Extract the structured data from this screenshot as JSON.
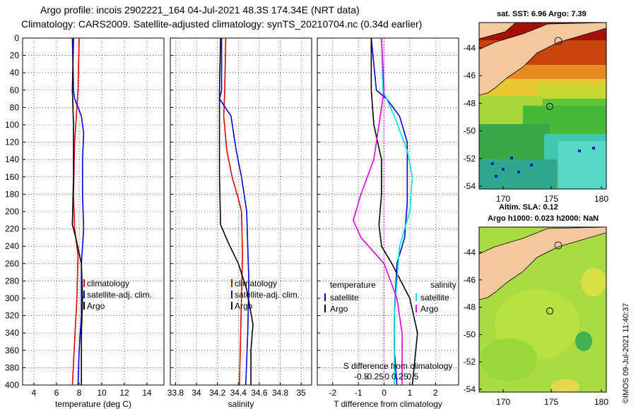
{
  "header": {
    "line1": "Argo profile: incois 2902221_164 04-Jul-2021 48.3S 174.34E (NRT data)",
    "line2": "Climatology: CARS2009. Satellite-adjusted climatology: synTS_20210704.nc (0.34d earlier)"
  },
  "colors": {
    "climatology": "#e00000",
    "satellite": "#0000dd",
    "argo": "#000000",
    "sal_satellite": "#00e0e0",
    "sal_argo": "#e000e0",
    "grid": "#000000"
  },
  "depth_axis": {
    "range": [
      0,
      400
    ],
    "ticks": [
      "0",
      "20",
      "40",
      "60",
      "80",
      "100",
      "120",
      "140",
      "160",
      "180",
      "200",
      "220",
      "240",
      "260",
      "280",
      "300",
      "320",
      "340",
      "360",
      "380",
      "400"
    ]
  },
  "chart_data": [
    {
      "type": "line",
      "id": "temperature",
      "xlabel": "temperature (deg C)",
      "xlim": [
        3,
        15.5
      ],
      "xticks": [
        4,
        6,
        8,
        10,
        12,
        14
      ],
      "xtick_labels": [
        "4",
        "6",
        "8",
        "10",
        "12",
        "14"
      ],
      "ylim": [
        0,
        400
      ],
      "legend": [
        "climatology",
        "satellite-adj. clim.",
        "Argo"
      ],
      "series": [
        {
          "name": "climatology",
          "color": "climatology",
          "points": [
            [
              8.0,
              0
            ],
            [
              7.9,
              60
            ],
            [
              7.6,
              120
            ],
            [
              7.5,
              180
            ],
            [
              7.6,
              220
            ],
            [
              7.9,
              250
            ],
            [
              7.8,
              300
            ],
            [
              7.6,
              350
            ],
            [
              7.4,
              400
            ]
          ]
        },
        {
          "name": "satellite-adj. clim.",
          "color": "satellite",
          "points": [
            [
              7.4,
              0
            ],
            [
              7.5,
              60
            ],
            [
              7.6,
              70
            ],
            [
              8.2,
              90
            ],
            [
              8.4,
              110
            ],
            [
              8.3,
              140
            ],
            [
              8.3,
              180
            ],
            [
              8.4,
              220
            ],
            [
              8.2,
              260
            ],
            [
              8.2,
              320
            ],
            [
              8.0,
              360
            ],
            [
              7.9,
              400
            ]
          ]
        },
        {
          "name": "Argo",
          "color": "argo",
          "points": [
            [
              7.5,
              0
            ],
            [
              7.4,
              60
            ],
            [
              7.5,
              100
            ],
            [
              7.5,
              160
            ],
            [
              7.4,
              215
            ],
            [
              7.7,
              230
            ],
            [
              8.2,
              260
            ],
            [
              8.3,
              300
            ],
            [
              8.2,
              340
            ],
            [
              8.2,
              400
            ]
          ]
        }
      ]
    },
    {
      "type": "line",
      "id": "salinity",
      "xlabel": "salinity",
      "xlim": [
        33.75,
        35.1
      ],
      "xticks": [
        33.8,
        34.0,
        34.2,
        34.4,
        34.6,
        34.8,
        35.0
      ],
      "xtick_labels": [
        "33.8",
        "34",
        "34.2",
        "34.4",
        "34.6",
        "34.8",
        "35"
      ],
      "ylim": [
        0,
        400
      ],
      "legend": [
        "climatology",
        "satellite-adj. clim.",
        "Argo"
      ],
      "series": [
        {
          "name": "climatology",
          "color": "climatology",
          "points": [
            [
              34.28,
              0
            ],
            [
              34.27,
              60
            ],
            [
              34.26,
              90
            ],
            [
              34.29,
              130
            ],
            [
              34.34,
              160
            ],
            [
              34.4,
              185
            ],
            [
              34.43,
              200
            ],
            [
              34.44,
              250
            ],
            [
              34.43,
              300
            ],
            [
              34.41,
              400
            ]
          ]
        },
        {
          "name": "satellite-adj. clim.",
          "color": "satellite",
          "points": [
            [
              34.24,
              0
            ],
            [
              34.24,
              60
            ],
            [
              34.22,
              70
            ],
            [
              34.33,
              90
            ],
            [
              34.38,
              130
            ],
            [
              34.43,
              160
            ],
            [
              34.48,
              200
            ],
            [
              34.49,
              240
            ],
            [
              34.5,
              280
            ],
            [
              34.49,
              340
            ],
            [
              34.47,
              400
            ]
          ]
        },
        {
          "name": "Argo",
          "color": "argo",
          "points": [
            [
              34.23,
              0
            ],
            [
              34.22,
              60
            ],
            [
              34.22,
              100
            ],
            [
              34.22,
              160
            ],
            [
              34.23,
              215
            ],
            [
              34.3,
              235
            ],
            [
              34.4,
              260
            ],
            [
              34.48,
              290
            ],
            [
              34.54,
              330
            ],
            [
              34.52,
              360
            ],
            [
              34.52,
              400
            ]
          ]
        }
      ]
    },
    {
      "type": "line",
      "id": "difference",
      "xlabel": "T difference from climatology",
      "xlabel2": "S difference from climatology",
      "xlim": [
        -2.6,
        2.9
      ],
      "xticks": [
        -2,
        -1,
        0,
        1,
        2
      ],
      "xtick_labels": [
        "-2",
        "-1",
        "0",
        "1",
        "2"
      ],
      "s_xticks": [
        -0.5,
        -0.25,
        0,
        0.25,
        0.5
      ],
      "s_xtick_labels": [
        "-0.5",
        "-0.25",
        "0",
        "0.25",
        "0.5"
      ],
      "s_scale": 2,
      "zero_line_color": "#cc00cc",
      "ylim": [
        0,
        400
      ],
      "legend_left_title": "temperature",
      "legend_right_title": "salinity",
      "legend_left": [
        "satellite",
        "Argo"
      ],
      "legend_right": [
        "satellite",
        "Argo"
      ],
      "series": [
        {
          "name": "T satellite",
          "color": "satellite",
          "points": [
            [
              -0.5,
              0
            ],
            [
              -0.3,
              60
            ],
            [
              0.1,
              70
            ],
            [
              0.6,
              90
            ],
            [
              0.9,
              120
            ],
            [
              0.9,
              160
            ],
            [
              0.9,
              190
            ],
            [
              0.8,
              230
            ],
            [
              0.5,
              260
            ],
            [
              0.4,
              320
            ],
            [
              0.4,
              360
            ],
            [
              0.5,
              400
            ]
          ]
        },
        {
          "name": "T Argo",
          "color": "argo",
          "points": [
            [
              -0.5,
              0
            ],
            [
              -0.5,
              60
            ],
            [
              -0.4,
              100
            ],
            [
              -0.1,
              140
            ],
            [
              -0.1,
              180
            ],
            [
              -0.2,
              215
            ],
            [
              -0.1,
              240
            ],
            [
              0.3,
              260
            ],
            [
              1.0,
              300
            ],
            [
              1.3,
              340
            ],
            [
              1.1,
              400
            ]
          ]
        },
        {
          "name": "S satellite",
          "color": "sal_satellite",
          "points": [
            [
              -0.1,
              0
            ],
            [
              -0.05,
              60
            ],
            [
              0.4,
              90
            ],
            [
              0.9,
              130
            ],
            [
              1.1,
              160
            ],
            [
              1.0,
              200
            ],
            [
              0.6,
              240
            ],
            [
              0.5,
              280
            ],
            [
              0.4,
              320
            ],
            [
              0.4,
              360
            ],
            [
              0.4,
              400
            ]
          ]
        },
        {
          "name": "S Argo",
          "color": "sal_argo",
          "points": [
            [
              -0.1,
              0
            ],
            [
              0.0,
              60
            ],
            [
              -0.2,
              100
            ],
            [
              -0.4,
              140
            ],
            [
              -0.9,
              180
            ],
            [
              -1.2,
              210
            ],
            [
              -0.9,
              230
            ],
            [
              0.0,
              260
            ],
            [
              0.5,
              300
            ],
            [
              0.7,
              340
            ],
            [
              0.7,
              400
            ]
          ]
        }
      ]
    }
  ],
  "maps": {
    "top": {
      "title": "sat. SST: 6.96 Argo: 7.39",
      "lat_labels": [
        "-44",
        "-46",
        "-48",
        "-50",
        "-52",
        "-54"
      ],
      "lon_labels": [
        "170",
        "175",
        "180"
      ]
    },
    "bottom": {
      "title1": "Altim. SLA: 0.12",
      "title2": "Argo h1000: 0.023 h2000: NaN",
      "lat_labels": [
        "-44",
        "-46",
        "-48",
        "-50",
        "-52",
        "-54"
      ],
      "lon_labels": [
        "170",
        "175",
        "180"
      ]
    }
  },
  "credit": "©IMOS 09-Jul-2021 11:40:37"
}
